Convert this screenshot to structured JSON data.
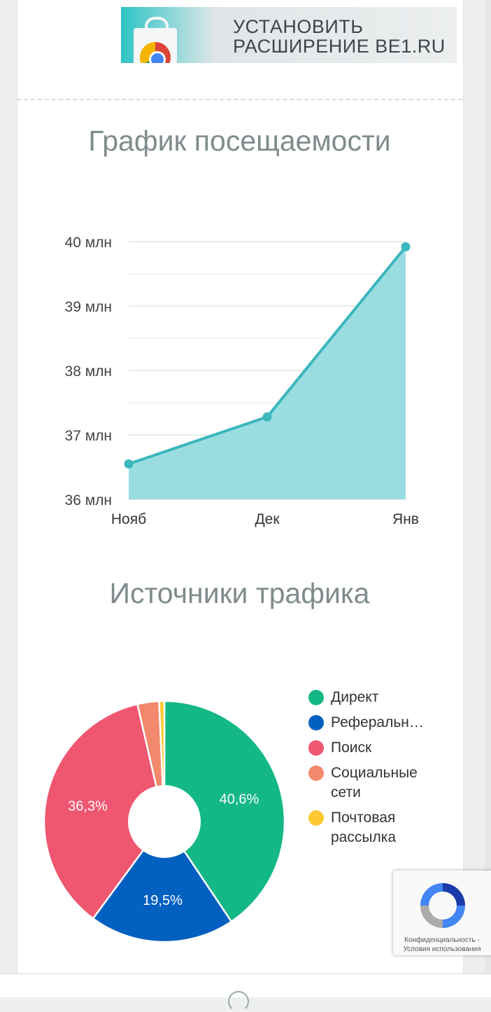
{
  "banner": {
    "line1": "УСТАНОВИТЬ",
    "line2": "РАСШИРЕНИЕ BE1.RU"
  },
  "sections": {
    "visits_title": "График посещаемости",
    "traffic_title": "Источники трафика"
  },
  "chart_data": [
    {
      "type": "area",
      "title": "График посещаемости",
      "categories": [
        "Нояб",
        "Дек",
        "Янв"
      ],
      "values": [
        36.55,
        37.28,
        39.92
      ],
      "y_unit": "млн",
      "yticks": [
        "36 млн",
        "37 млн",
        "38 млн",
        "39 млн",
        "40 млн"
      ],
      "ylim": [
        36,
        40
      ],
      "grid": true,
      "colors": {
        "line": "#3bb7bd",
        "fill": "#9adde1"
      }
    },
    {
      "type": "pie",
      "title": "Источники трафика",
      "labels": [
        "Директ",
        "Реферальн…",
        "Поиск",
        "Социальные сети",
        "Почтовая рассылка"
      ],
      "values": [
        40.6,
        19.5,
        36.3,
        2.9,
        0.7
      ],
      "data_labels": [
        "40,6%",
        "19,5%",
        "36,3%",
        "",
        ""
      ],
      "colors": [
        "#14b887",
        "#0160c0",
        "#ef5670",
        "#f2896c",
        "#fdc832"
      ],
      "legend_position": "right",
      "donut": true
    }
  ],
  "recaptcha": {
    "line1": "Конфиденциальность -",
    "line2": "Условия использования"
  }
}
